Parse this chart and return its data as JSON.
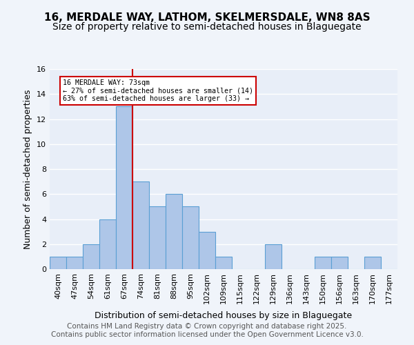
{
  "title": "16, MERDALE WAY, LATHOM, SKELMERSDALE, WN8 8AS",
  "subtitle": "Size of property relative to semi-detached houses in Blaguegate",
  "xlabel": "Distribution of semi-detached houses by size in Blaguegate",
  "ylabel": "Number of semi-detached properties",
  "bin_labels": [
    "40sqm",
    "47sqm",
    "54sqm",
    "61sqm",
    "67sqm",
    "74sqm",
    "81sqm",
    "88sqm",
    "95sqm",
    "102sqm",
    "109sqm",
    "115sqm",
    "122sqm",
    "129sqm",
    "136sqm",
    "143sqm",
    "150sqm",
    "156sqm",
    "163sqm",
    "170sqm",
    "177sqm"
  ],
  "bar_values": [
    1,
    1,
    2,
    4,
    13,
    7,
    5,
    6,
    5,
    3,
    1,
    0,
    0,
    2,
    0,
    0,
    1,
    1,
    0,
    1,
    0
  ],
  "bar_color": "#aec6e8",
  "bar_edge_color": "#5a9fd4",
  "red_line_x": 4.5,
  "red_line_label": "16 MERDALE WAY: 73sqm",
  "annotation_smaller": "← 27% of semi-detached houses are smaller (14)",
  "annotation_larger": "63% of semi-detached houses are larger (33) →",
  "annotation_box_color": "#ffffff",
  "annotation_box_edge": "#cc0000",
  "red_line_color": "#cc0000",
  "ylim": [
    0,
    16
  ],
  "yticks": [
    0,
    2,
    4,
    6,
    8,
    10,
    12,
    14,
    16
  ],
  "footnote": "Contains HM Land Registry data © Crown copyright and database right 2025.\nContains public sector information licensed under the Open Government Licence v3.0.",
  "background_color": "#f0f4fa",
  "plot_background": "#e8eef8",
  "grid_color": "#ffffff",
  "title_fontsize": 11,
  "subtitle_fontsize": 10,
  "axis_label_fontsize": 9,
  "tick_fontsize": 8,
  "footnote_fontsize": 7.5
}
